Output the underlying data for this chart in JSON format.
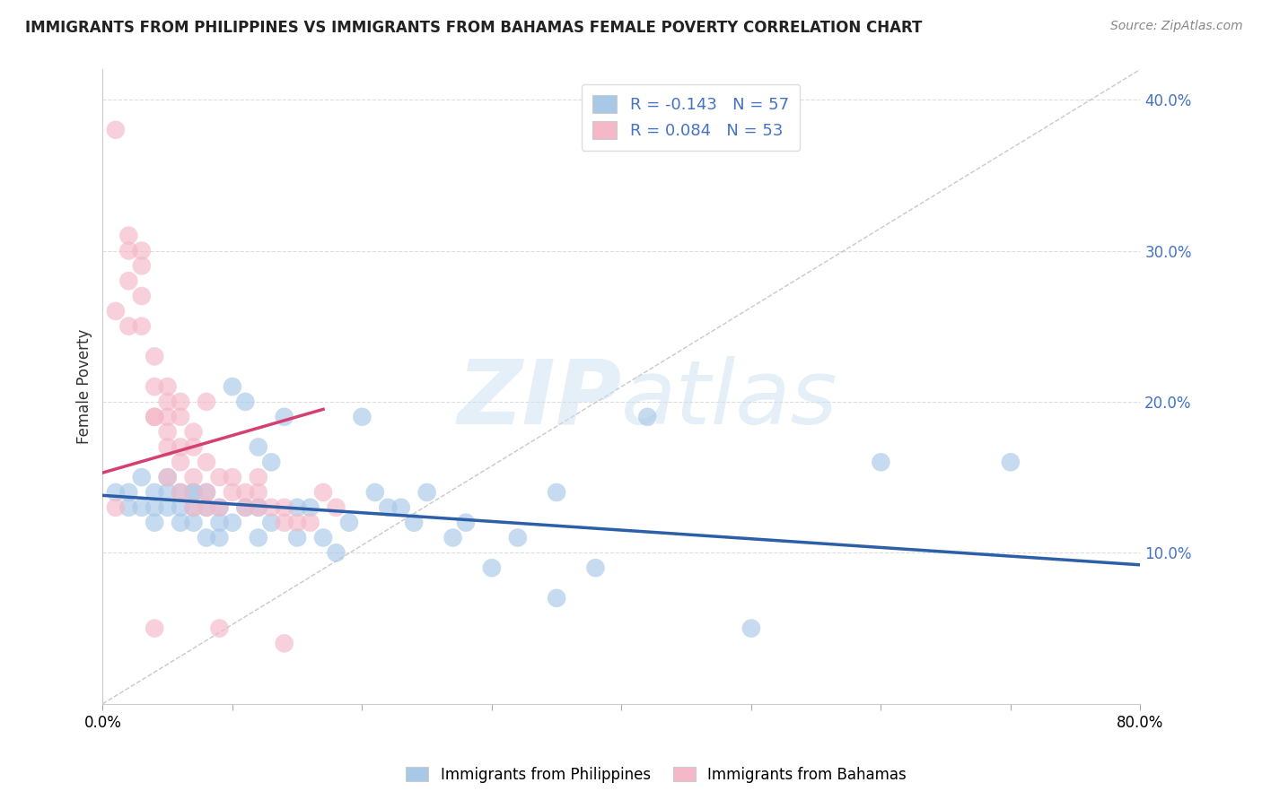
{
  "title": "IMMIGRANTS FROM PHILIPPINES VS IMMIGRANTS FROM BAHAMAS FEMALE POVERTY CORRELATION CHART",
  "source": "Source: ZipAtlas.com",
  "ylabel": "Female Poverty",
  "legend_blue_r": "R = -0.143",
  "legend_blue_n": "N = 57",
  "legend_pink_r": "R = 0.084",
  "legend_pink_n": "N = 53",
  "legend_blue_label": "Immigrants from Philippines",
  "legend_pink_label": "Immigrants from Bahamas",
  "watermark_zip": "ZIP",
  "watermark_atlas": "atlas",
  "blue_color": "#a8c8e8",
  "pink_color": "#f4b8c8",
  "blue_line_color": "#2c5fa8",
  "pink_line_color": "#d44070",
  "xmin": 0.0,
  "xmax": 0.8,
  "ymin": 0.0,
  "ymax": 0.42,
  "yticks": [
    0.1,
    0.2,
    0.3,
    0.4
  ],
  "ytick_labels": [
    "10.0%",
    "20.0%",
    "30.0%",
    "40.0%"
  ],
  "blue_scatter_x": [
    0.01,
    0.02,
    0.02,
    0.03,
    0.03,
    0.04,
    0.04,
    0.04,
    0.05,
    0.05,
    0.05,
    0.06,
    0.06,
    0.06,
    0.07,
    0.07,
    0.07,
    0.07,
    0.08,
    0.08,
    0.08,
    0.09,
    0.09,
    0.09,
    0.1,
    0.1,
    0.11,
    0.11,
    0.12,
    0.12,
    0.12,
    0.13,
    0.13,
    0.14,
    0.15,
    0.15,
    0.16,
    0.17,
    0.18,
    0.19,
    0.2,
    0.21,
    0.22,
    0.23,
    0.24,
    0.25,
    0.27,
    0.28,
    0.3,
    0.32,
    0.35,
    0.38,
    0.42,
    0.5,
    0.6,
    0.7,
    0.35
  ],
  "blue_scatter_y": [
    0.14,
    0.14,
    0.13,
    0.15,
    0.13,
    0.14,
    0.13,
    0.12,
    0.15,
    0.14,
    0.13,
    0.14,
    0.13,
    0.12,
    0.14,
    0.14,
    0.13,
    0.12,
    0.14,
    0.13,
    0.11,
    0.13,
    0.12,
    0.11,
    0.21,
    0.12,
    0.2,
    0.13,
    0.17,
    0.13,
    0.11,
    0.16,
    0.12,
    0.19,
    0.13,
    0.11,
    0.13,
    0.11,
    0.1,
    0.12,
    0.19,
    0.14,
    0.13,
    0.13,
    0.12,
    0.14,
    0.11,
    0.12,
    0.09,
    0.11,
    0.14,
    0.09,
    0.19,
    0.05,
    0.16,
    0.16,
    0.07
  ],
  "pink_scatter_x": [
    0.01,
    0.01,
    0.01,
    0.02,
    0.02,
    0.02,
    0.02,
    0.03,
    0.03,
    0.03,
    0.03,
    0.04,
    0.04,
    0.04,
    0.04,
    0.05,
    0.05,
    0.05,
    0.05,
    0.05,
    0.05,
    0.06,
    0.06,
    0.06,
    0.06,
    0.06,
    0.07,
    0.07,
    0.07,
    0.07,
    0.08,
    0.08,
    0.08,
    0.08,
    0.09,
    0.09,
    0.1,
    0.1,
    0.11,
    0.11,
    0.12,
    0.12,
    0.12,
    0.13,
    0.14,
    0.14,
    0.15,
    0.16,
    0.17,
    0.18,
    0.04,
    0.09,
    0.14
  ],
  "pink_scatter_y": [
    0.38,
    0.26,
    0.13,
    0.31,
    0.3,
    0.28,
    0.25,
    0.3,
    0.29,
    0.27,
    0.25,
    0.23,
    0.21,
    0.19,
    0.19,
    0.21,
    0.2,
    0.19,
    0.18,
    0.17,
    0.15,
    0.2,
    0.19,
    0.17,
    0.16,
    0.14,
    0.18,
    0.17,
    0.15,
    0.13,
    0.2,
    0.16,
    0.14,
    0.13,
    0.15,
    0.13,
    0.15,
    0.14,
    0.14,
    0.13,
    0.15,
    0.14,
    0.13,
    0.13,
    0.13,
    0.12,
    0.12,
    0.12,
    0.14,
    0.13,
    0.05,
    0.05,
    0.04
  ],
  "blue_trend_x": [
    0.0,
    0.8
  ],
  "blue_trend_y": [
    0.138,
    0.092
  ],
  "pink_trend_x": [
    0.0,
    0.17
  ],
  "pink_trend_y": [
    0.153,
    0.195
  ],
  "diag_line_x": [
    0.0,
    0.8
  ],
  "diag_line_y": [
    0.0,
    0.42
  ],
  "xtick_positions": [
    0.0,
    0.1,
    0.2,
    0.3,
    0.4,
    0.5,
    0.6,
    0.7,
    0.8
  ],
  "title_fontsize": 12,
  "source_fontsize": 10,
  "tick_fontsize": 12
}
